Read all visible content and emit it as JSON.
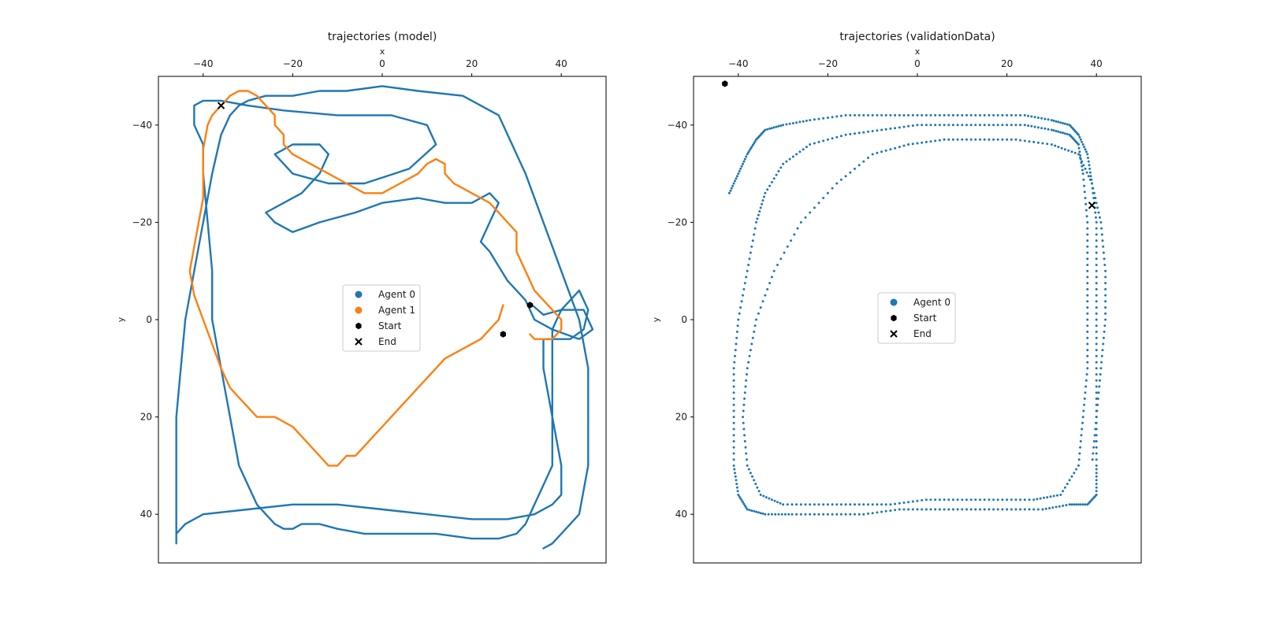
{
  "colors": {
    "agent0": "#1f77b4",
    "agent1": "#ff7f0e",
    "marker": "#000000",
    "axes": "#000000",
    "background": "#ffffff"
  },
  "chart_data": [
    {
      "type": "line",
      "title": "trajectories (model)",
      "xlabel": "x",
      "ylabel": "y",
      "x_axis_position": "top",
      "y_axis_inverted": true,
      "xlim": [
        -50,
        50
      ],
      "ylim": [
        50,
        -50
      ],
      "xticks": [
        -40,
        -20,
        0,
        20,
        40
      ],
      "yticks": [
        -40,
        -20,
        0,
        20,
        40
      ],
      "xtick_labels": [
        "−40",
        "−20",
        "0",
        "20",
        "40"
      ],
      "ytick_labels": [
        "−40",
        "−20",
        "0",
        "20",
        "40"
      ],
      "grid": false,
      "legend_position": "center",
      "legend": [
        {
          "label": "Agent 0",
          "marker": "circle",
          "color": "#1f77b4"
        },
        {
          "label": "Agent 1",
          "marker": "circle",
          "color": "#ff7f0e"
        },
        {
          "label": "Start",
          "marker": "hexagon",
          "color": "#000000"
        },
        {
          "label": "End",
          "marker": "x",
          "color": "#000000"
        }
      ],
      "series": [
        {
          "name": "Agent 0",
          "color": "#1f77b4",
          "x": [
            33.5,
            36,
            40,
            45,
            47,
            44,
            38,
            34,
            32,
            28,
            24,
            22,
            24,
            26,
            24,
            20,
            14,
            8,
            0,
            -6,
            -14,
            -20,
            -24,
            -26,
            -22,
            -18,
            -14,
            -12,
            -14,
            -20,
            -24,
            -20,
            -12,
            -4,
            6,
            12,
            10,
            2,
            -10,
            -22,
            -30,
            -36,
            -40,
            -42,
            -42,
            -40,
            -40,
            -39,
            -38,
            -38,
            -36,
            -34,
            -32,
            -30,
            -28,
            -26,
            -24,
            -22,
            -20,
            -18,
            -14,
            -10,
            -4,
            4,
            12,
            20,
            26,
            30,
            32,
            34,
            36,
            38,
            38,
            38,
            38,
            40,
            42,
            44,
            46,
            45,
            42,
            38,
            36,
            36,
            38,
            40,
            40,
            38,
            34,
            28,
            20,
            10,
            0,
            -10,
            -20,
            -30,
            -40,
            -44,
            -46,
            -46,
            -46,
            -46,
            -46,
            -45,
            -44,
            -42,
            -40,
            -38,
            -36,
            -34,
            -32,
            -30,
            -26,
            -20,
            -14,
            -8,
            0,
            8,
            18,
            26,
            32,
            36,
            40,
            44,
            46,
            46,
            46,
            44,
            42,
            40,
            38,
            36
          ],
          "y": [
            -3,
            -1,
            -2,
            -2,
            2,
            4,
            2,
            0,
            -4,
            -8,
            -14,
            -16,
            -20,
            -24,
            -26,
            -24,
            -24,
            -25,
            -24,
            -22,
            -20,
            -18,
            -20,
            -22,
            -24,
            -26,
            -30,
            -34,
            -36,
            -36,
            -34,
            -30,
            -28,
            -28,
            -31,
            -36,
            -40,
            -42,
            -42,
            -43,
            -44,
            -45,
            -45,
            -44,
            -40,
            -36,
            -30,
            -20,
            -10,
            0,
            10,
            20,
            30,
            34,
            38,
            40,
            42,
            43,
            43,
            42,
            42,
            43,
            44,
            44,
            44,
            45,
            45,
            44,
            42,
            38,
            34,
            30,
            20,
            10,
            2,
            -2,
            -4,
            -6,
            -2,
            2,
            4,
            4,
            4,
            10,
            20,
            30,
            36,
            38,
            40,
            41,
            41,
            40,
            39,
            38,
            38,
            39,
            40,
            42,
            44,
            46,
            40,
            30,
            20,
            10,
            0,
            -10,
            -20,
            -30,
            -38,
            -42,
            -44,
            -45,
            -46,
            -46,
            -47,
            -47,
            -48,
            -47,
            -46,
            -42,
            -30,
            -20,
            -10,
            0,
            10,
            20,
            30,
            40,
            42,
            44,
            46,
            47
          ]
        },
        {
          "name": "Agent 1",
          "color": "#ff7f0e",
          "x": [
            27,
            26,
            24,
            22,
            18,
            14,
            12,
            10,
            8,
            6,
            4,
            2,
            0,
            -2,
            -4,
            -6,
            -8,
            -10,
            -12,
            -14,
            -16,
            -18,
            -20,
            -24,
            -28,
            -30,
            -32,
            -34,
            -36,
            -38,
            -40,
            -42,
            -43,
            -42,
            -41,
            -40,
            -40,
            -40,
            -39,
            -38,
            -36,
            -34,
            -32,
            -30,
            -28,
            -26,
            -24,
            -24,
            -22,
            -22,
            -20,
            -16,
            -12,
            -8,
            -4,
            0,
            4,
            8,
            10,
            12,
            14,
            14,
            16,
            18,
            20,
            22,
            24,
            26,
            28,
            30,
            30,
            32,
            34,
            36,
            38,
            40,
            40,
            38,
            36,
            34,
            33
          ],
          "y": [
            -3,
            0,
            2,
            4,
            6,
            8,
            10,
            12,
            14,
            16,
            18,
            20,
            22,
            24,
            26,
            28,
            28,
            30,
            30,
            28,
            26,
            24,
            22,
            20,
            20,
            18,
            16,
            14,
            10,
            5,
            0,
            -5,
            -10,
            -15,
            -20,
            -25,
            -30,
            -35,
            -40,
            -42,
            -44,
            -46,
            -47,
            -47,
            -46,
            -44,
            -42,
            -40,
            -38,
            -36,
            -34,
            -32,
            -30,
            -28,
            -26,
            -26,
            -28,
            -30,
            -32,
            -33,
            -32,
            -30,
            -28,
            -27,
            -26,
            -25,
            -24,
            -22,
            -20,
            -18,
            -14,
            -10,
            -6,
            -4,
            -2,
            0,
            2,
            4,
            4,
            4,
            3
          ]
        },
        {
          "name": "Start",
          "marker": "hexagon",
          "color": "#000000",
          "x": [
            27,
            33
          ],
          "y": [
            3,
            -3
          ]
        },
        {
          "name": "End",
          "marker": "x",
          "color": "#000000",
          "x": [
            -36
          ],
          "y": [
            -44
          ]
        }
      ]
    },
    {
      "type": "scatter",
      "title": "trajectories (validationData)",
      "xlabel": "x",
      "ylabel": "y",
      "x_axis_position": "top",
      "y_axis_inverted": true,
      "xlim": [
        -50,
        50
      ],
      "ylim": [
        50,
        -50
      ],
      "xticks": [
        -40,
        -20,
        0,
        20,
        40
      ],
      "yticks": [
        -40,
        -20,
        0,
        20,
        40
      ],
      "xtick_labels": [
        "−40",
        "−20",
        "0",
        "20",
        "40"
      ],
      "ytick_labels": [
        "−40",
        "−20",
        "0",
        "20",
        "40"
      ],
      "grid": false,
      "legend_position": "center",
      "legend": [
        {
          "label": "Agent 0",
          "marker": "circle",
          "color": "#1f77b4"
        },
        {
          "label": "Start",
          "marker": "hexagon",
          "color": "#000000"
        },
        {
          "label": "End",
          "marker": "x",
          "color": "#000000"
        }
      ],
      "series": [
        {
          "name": "Agent 0",
          "color": "#1f77b4",
          "x": [
            -42,
            -40,
            -38,
            -36,
            -34,
            -30,
            -24,
            -16,
            -8,
            0,
            8,
            16,
            24,
            30,
            34,
            36,
            38,
            39,
            40,
            40,
            40,
            40,
            40,
            40,
            40,
            38,
            34,
            28,
            20,
            12,
            4,
            -4,
            -12,
            -20,
            -28,
            -34,
            -38,
            -40,
            -41,
            -41,
            -41,
            -40,
            -38,
            -36,
            -34,
            -30,
            -24,
            -16,
            -8,
            0,
            8,
            16,
            24,
            30,
            34,
            36,
            37,
            38,
            38,
            38,
            38,
            37,
            36,
            32,
            26,
            18,
            10,
            2,
            -6,
            -14,
            -22,
            -30,
            -35,
            -38,
            -39,
            -38,
            -36,
            -32,
            -26,
            -18,
            -10,
            -2,
            6,
            14,
            22,
            30,
            36,
            39,
            41,
            42,
            42,
            41,
            40,
            39
          ],
          "y": [
            -26,
            -30,
            -34,
            -37,
            -39,
            -40,
            -41,
            -42,
            -42,
            -42,
            -42,
            -42,
            -42,
            -41,
            -40,
            -38,
            -34,
            -28,
            -20,
            -10,
            0,
            10,
            20,
            30,
            36,
            38,
            38,
            39,
            39,
            39,
            39,
            39,
            40,
            40,
            40,
            40,
            39,
            36,
            30,
            20,
            10,
            0,
            -10,
            -20,
            -26,
            -32,
            -36,
            -38,
            -39,
            -40,
            -40,
            -40,
            -40,
            -39,
            -38,
            -36,
            -30,
            -20,
            -10,
            0,
            10,
            20,
            30,
            36,
            37,
            37,
            37,
            37,
            38,
            38,
            38,
            38,
            36,
            30,
            20,
            10,
            0,
            -10,
            -20,
            -28,
            -34,
            -36,
            -37,
            -37,
            -37,
            -36,
            -34,
            -28,
            -20,
            -10,
            0,
            10,
            20,
            30
          ]
        },
        {
          "name": "Start",
          "marker": "hexagon",
          "color": "#000000",
          "x": [
            -43
          ],
          "y": [
            -48.5
          ]
        },
        {
          "name": "End",
          "marker": "x",
          "color": "#000000",
          "x": [
            39
          ],
          "y": [
            -23.5
          ]
        }
      ]
    }
  ]
}
